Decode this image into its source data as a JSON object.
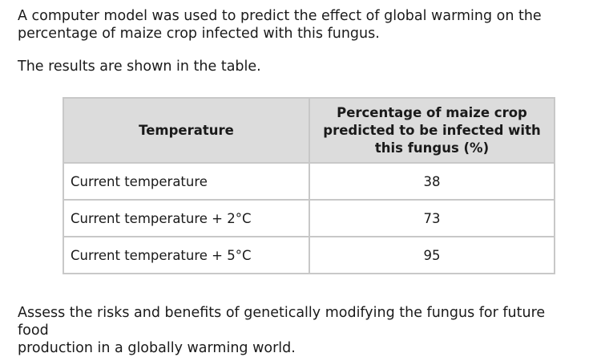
{
  "intro_lines": [
    "A computer model was used to predict the effect of global warming on the",
    "percentage of maize crop infected with this fungus."
  ],
  "results_text": "The results are shown in the table.",
  "table": {
    "headers": {
      "temperature": "Temperature",
      "percentage_lines": [
        "Percentage of maize crop",
        "predicted to be infected with",
        "this fungus (%)"
      ]
    },
    "rows": [
      {
        "temperature": "Current temperature",
        "percentage": "38"
      },
      {
        "temperature": "Current temperature + 2°C",
        "percentage": "73"
      },
      {
        "temperature": "Current temperature + 5°C",
        "percentage": "95"
      }
    ]
  },
  "question_lines": [
    "Assess the risks and benefits of genetically modifying the fungus for future food",
    "production in a globally warming world."
  ]
}
